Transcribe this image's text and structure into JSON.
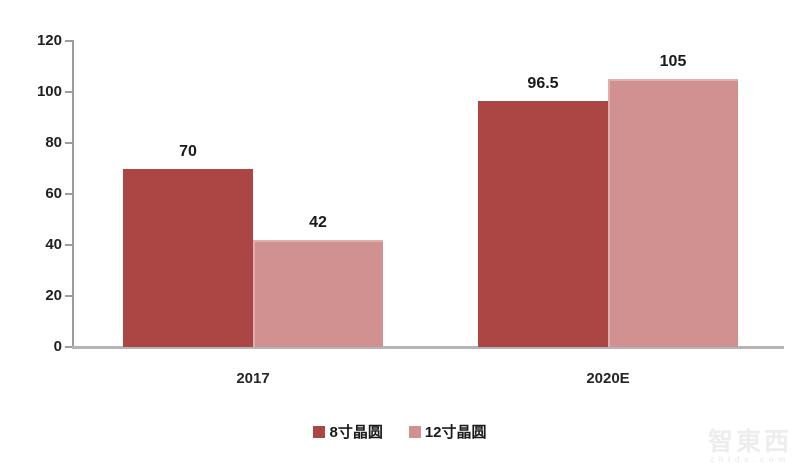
{
  "chart_data": {
    "type": "bar",
    "categories": [
      "2017",
      "2020E"
    ],
    "series": [
      {
        "name": "8寸晶圆",
        "color": "#AC4645",
        "values": [
          70,
          96.5
        ]
      },
      {
        "name": "12寸晶圆",
        "color": "#D29191",
        "values": [
          42,
          105
        ]
      }
    ],
    "value_labels": [
      [
        "70",
        "96.5"
      ],
      [
        "42",
        "105"
      ]
    ],
    "title": "",
    "xlabel": "",
    "ylabel": "",
    "ylim": [
      0,
      120
    ],
    "yticks": [
      "0",
      "20",
      "40",
      "60",
      "80",
      "100",
      "120"
    ],
    "ytick_values": [
      0,
      20,
      40,
      60,
      80,
      100,
      120
    ],
    "grid": false,
    "legend_position": "bottom",
    "axis_color": "#9d9d9d",
    "text_color": "#1f1f1f"
  },
  "watermark": {
    "logo_text": "智東西",
    "domain": "zhidx.com"
  }
}
